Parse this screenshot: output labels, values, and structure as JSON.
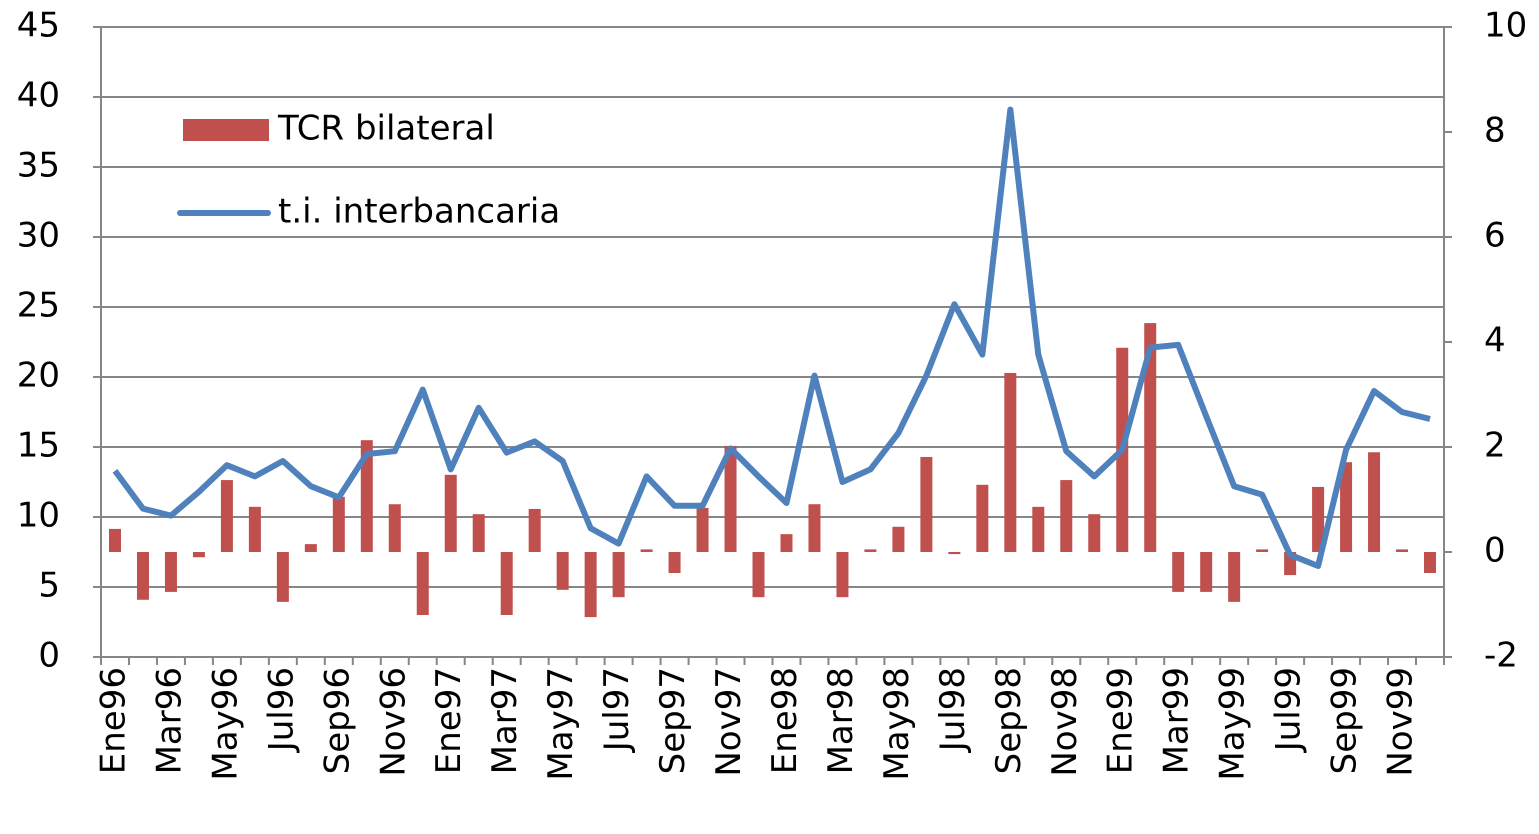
{
  "chart_data": {
    "type": "bar-line",
    "categories": [
      "Ene96",
      null,
      "Mar96",
      null,
      "May96",
      null,
      "Jul96",
      null,
      "Sep96",
      null,
      "Nov96",
      null,
      "Ene97",
      null,
      "Mar97",
      null,
      "May97",
      null,
      "Jul97",
      null,
      "Sep97",
      null,
      "Nov97",
      null,
      "Ene98",
      null,
      "Mar98",
      null,
      "May98",
      null,
      "Jul98",
      null,
      "Sep98",
      null,
      "Nov98",
      null,
      "Ene99",
      null,
      "Mar99",
      null,
      "May99",
      null,
      "Jul99",
      null,
      "Sep99",
      null,
      "Nov99",
      null
    ],
    "series": [
      {
        "name": "TCR bilateral",
        "type": "bar",
        "axis": "y2",
        "color": "#c0504d",
        "values": [
          0.44,
          -0.91,
          -0.76,
          -0.1,
          1.37,
          0.86,
          -0.95,
          0.15,
          1.05,
          2.13,
          0.91,
          -1.2,
          1.47,
          0.72,
          -1.2,
          0.82,
          -0.72,
          -1.24,
          -0.86,
          0.05,
          -0.4,
          0.84,
          2.02,
          -0.86,
          0.34,
          0.91,
          -0.86,
          0.05,
          0.48,
          1.81,
          -0.04,
          1.28,
          3.41,
          0.86,
          1.37,
          0.72,
          3.89,
          4.36,
          -0.76,
          -0.76,
          -0.95,
          0.05,
          -0.44,
          1.24,
          1.71,
          1.9,
          0.05,
          -0.4
        ]
      },
      {
        "name": "t.i. interbancaria",
        "type": "line",
        "axis": "y",
        "color": "#4f81bd",
        "values": [
          13.3,
          10.6,
          10.1,
          11.8,
          13.7,
          12.9,
          14.0,
          12.2,
          11.4,
          14.5,
          14.7,
          19.1,
          13.4,
          17.8,
          14.6,
          15.4,
          14.0,
          9.2,
          8.1,
          12.9,
          10.8,
          10.8,
          14.9,
          12.9,
          11.0,
          20.1,
          12.5,
          13.4,
          16.0,
          20.1,
          25.2,
          21.6,
          39.1,
          21.6,
          14.7,
          12.9,
          14.8,
          22.1,
          22.3,
          17.2,
          12.2,
          11.6,
          7.3,
          6.5,
          14.8,
          19.0,
          17.5,
          17.0
        ]
      }
    ],
    "ylim": [
      0,
      45
    ],
    "yticks": [
      0,
      5,
      10,
      15,
      20,
      25,
      30,
      35,
      40,
      45
    ],
    "y2lim": [
      -2,
      10
    ],
    "y2ticks": [
      -2,
      0,
      2,
      4,
      6,
      8,
      10
    ],
    "grid": true,
    "legend": "upper left"
  }
}
